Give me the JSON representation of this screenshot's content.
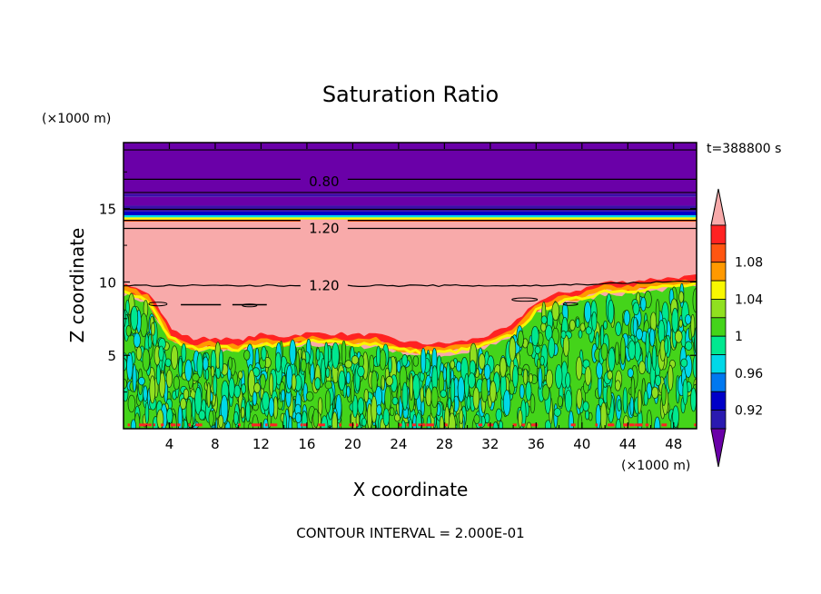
{
  "chart_data": {
    "type": "heatmap",
    "title": "Saturation Ratio",
    "xlabel": "X coordinate",
    "ylabel": "Z coordinate",
    "x_unit": "(×1000 m)",
    "y_unit": "(×1000 m)",
    "time_label": "t=388800 s",
    "footer": "CONTOUR INTERVAL = 2.000E-01",
    "xlim": [
      0,
      50
    ],
    "ylim": [
      0,
      19.5
    ],
    "x_ticks": [
      4,
      8,
      12,
      16,
      20,
      24,
      28,
      32,
      36,
      40,
      44,
      48
    ],
    "y_ticks": [
      5,
      10,
      15
    ],
    "contour_labels": [
      {
        "value": "0.80",
        "x": 17.5,
        "z": 16.9
      },
      {
        "value": "1.20",
        "x": 17.5,
        "z": 13.7
      },
      {
        "value": "1.20",
        "x": 17.5,
        "z": 9.8
      }
    ],
    "colorbar": {
      "labels": [
        "1.08",
        "1.04",
        "1",
        "0.96",
        "0.92"
      ],
      "levels": [
        0.9,
        0.92,
        0.94,
        0.96,
        0.98,
        1.0,
        1.02,
        1.04,
        1.06,
        1.08,
        1.1
      ],
      "colors": [
        "#6a00a8",
        "#2a1ab0",
        "#0000c8",
        "#0078f0",
        "#00d8e8",
        "#00e890",
        "#44d41a",
        "#90e020",
        "#f8f800",
        "#ff9900",
        "#ff5511",
        "#ff2222",
        "#f8aaaa"
      ]
    },
    "layers": [
      {
        "z0": 17.0,
        "z1": 19.5,
        "color": "#6a00a8"
      },
      {
        "z0": 16.0,
        "z1": 17.0,
        "color": "#6a00a8"
      },
      {
        "z0": 15.8,
        "z1": 16.0,
        "color": "#3a10a8"
      },
      {
        "z0": 15.2,
        "z1": 15.8,
        "color": "#6a00a8"
      },
      {
        "z0": 14.8,
        "z1": 15.2,
        "color": "#3a10a8"
      },
      {
        "z0": 14.55,
        "z1": 14.8,
        "color": "#0000c8"
      },
      {
        "z0": 14.4,
        "z1": 14.55,
        "color": "#00d8e8"
      },
      {
        "z0": 14.25,
        "z1": 14.4,
        "color": "#f8f800"
      },
      {
        "z0": 14.1,
        "z1": 14.25,
        "color": "#ff5511"
      }
    ],
    "cloud_base_profile": [
      [
        0,
        9.2
      ],
      [
        2,
        8.6
      ],
      [
        4,
        6.0
      ],
      [
        6,
        5.3
      ],
      [
        8,
        5.4
      ],
      [
        10,
        5.2
      ],
      [
        12,
        5.6
      ],
      [
        14,
        5.5
      ],
      [
        16,
        5.7
      ],
      [
        18,
        5.7
      ],
      [
        20,
        5.6
      ],
      [
        22,
        5.6
      ],
      [
        24,
        5.2
      ],
      [
        26,
        5.0
      ],
      [
        28,
        5.0
      ],
      [
        30,
        5.2
      ],
      [
        32,
        5.6
      ],
      [
        34,
        6.2
      ],
      [
        36,
        7.8
      ],
      [
        38,
        8.4
      ],
      [
        40,
        8.7
      ],
      [
        42,
        9.2
      ],
      [
        44,
        9.2
      ],
      [
        46,
        9.4
      ],
      [
        48,
        9.5
      ],
      [
        50,
        9.6
      ]
    ]
  }
}
